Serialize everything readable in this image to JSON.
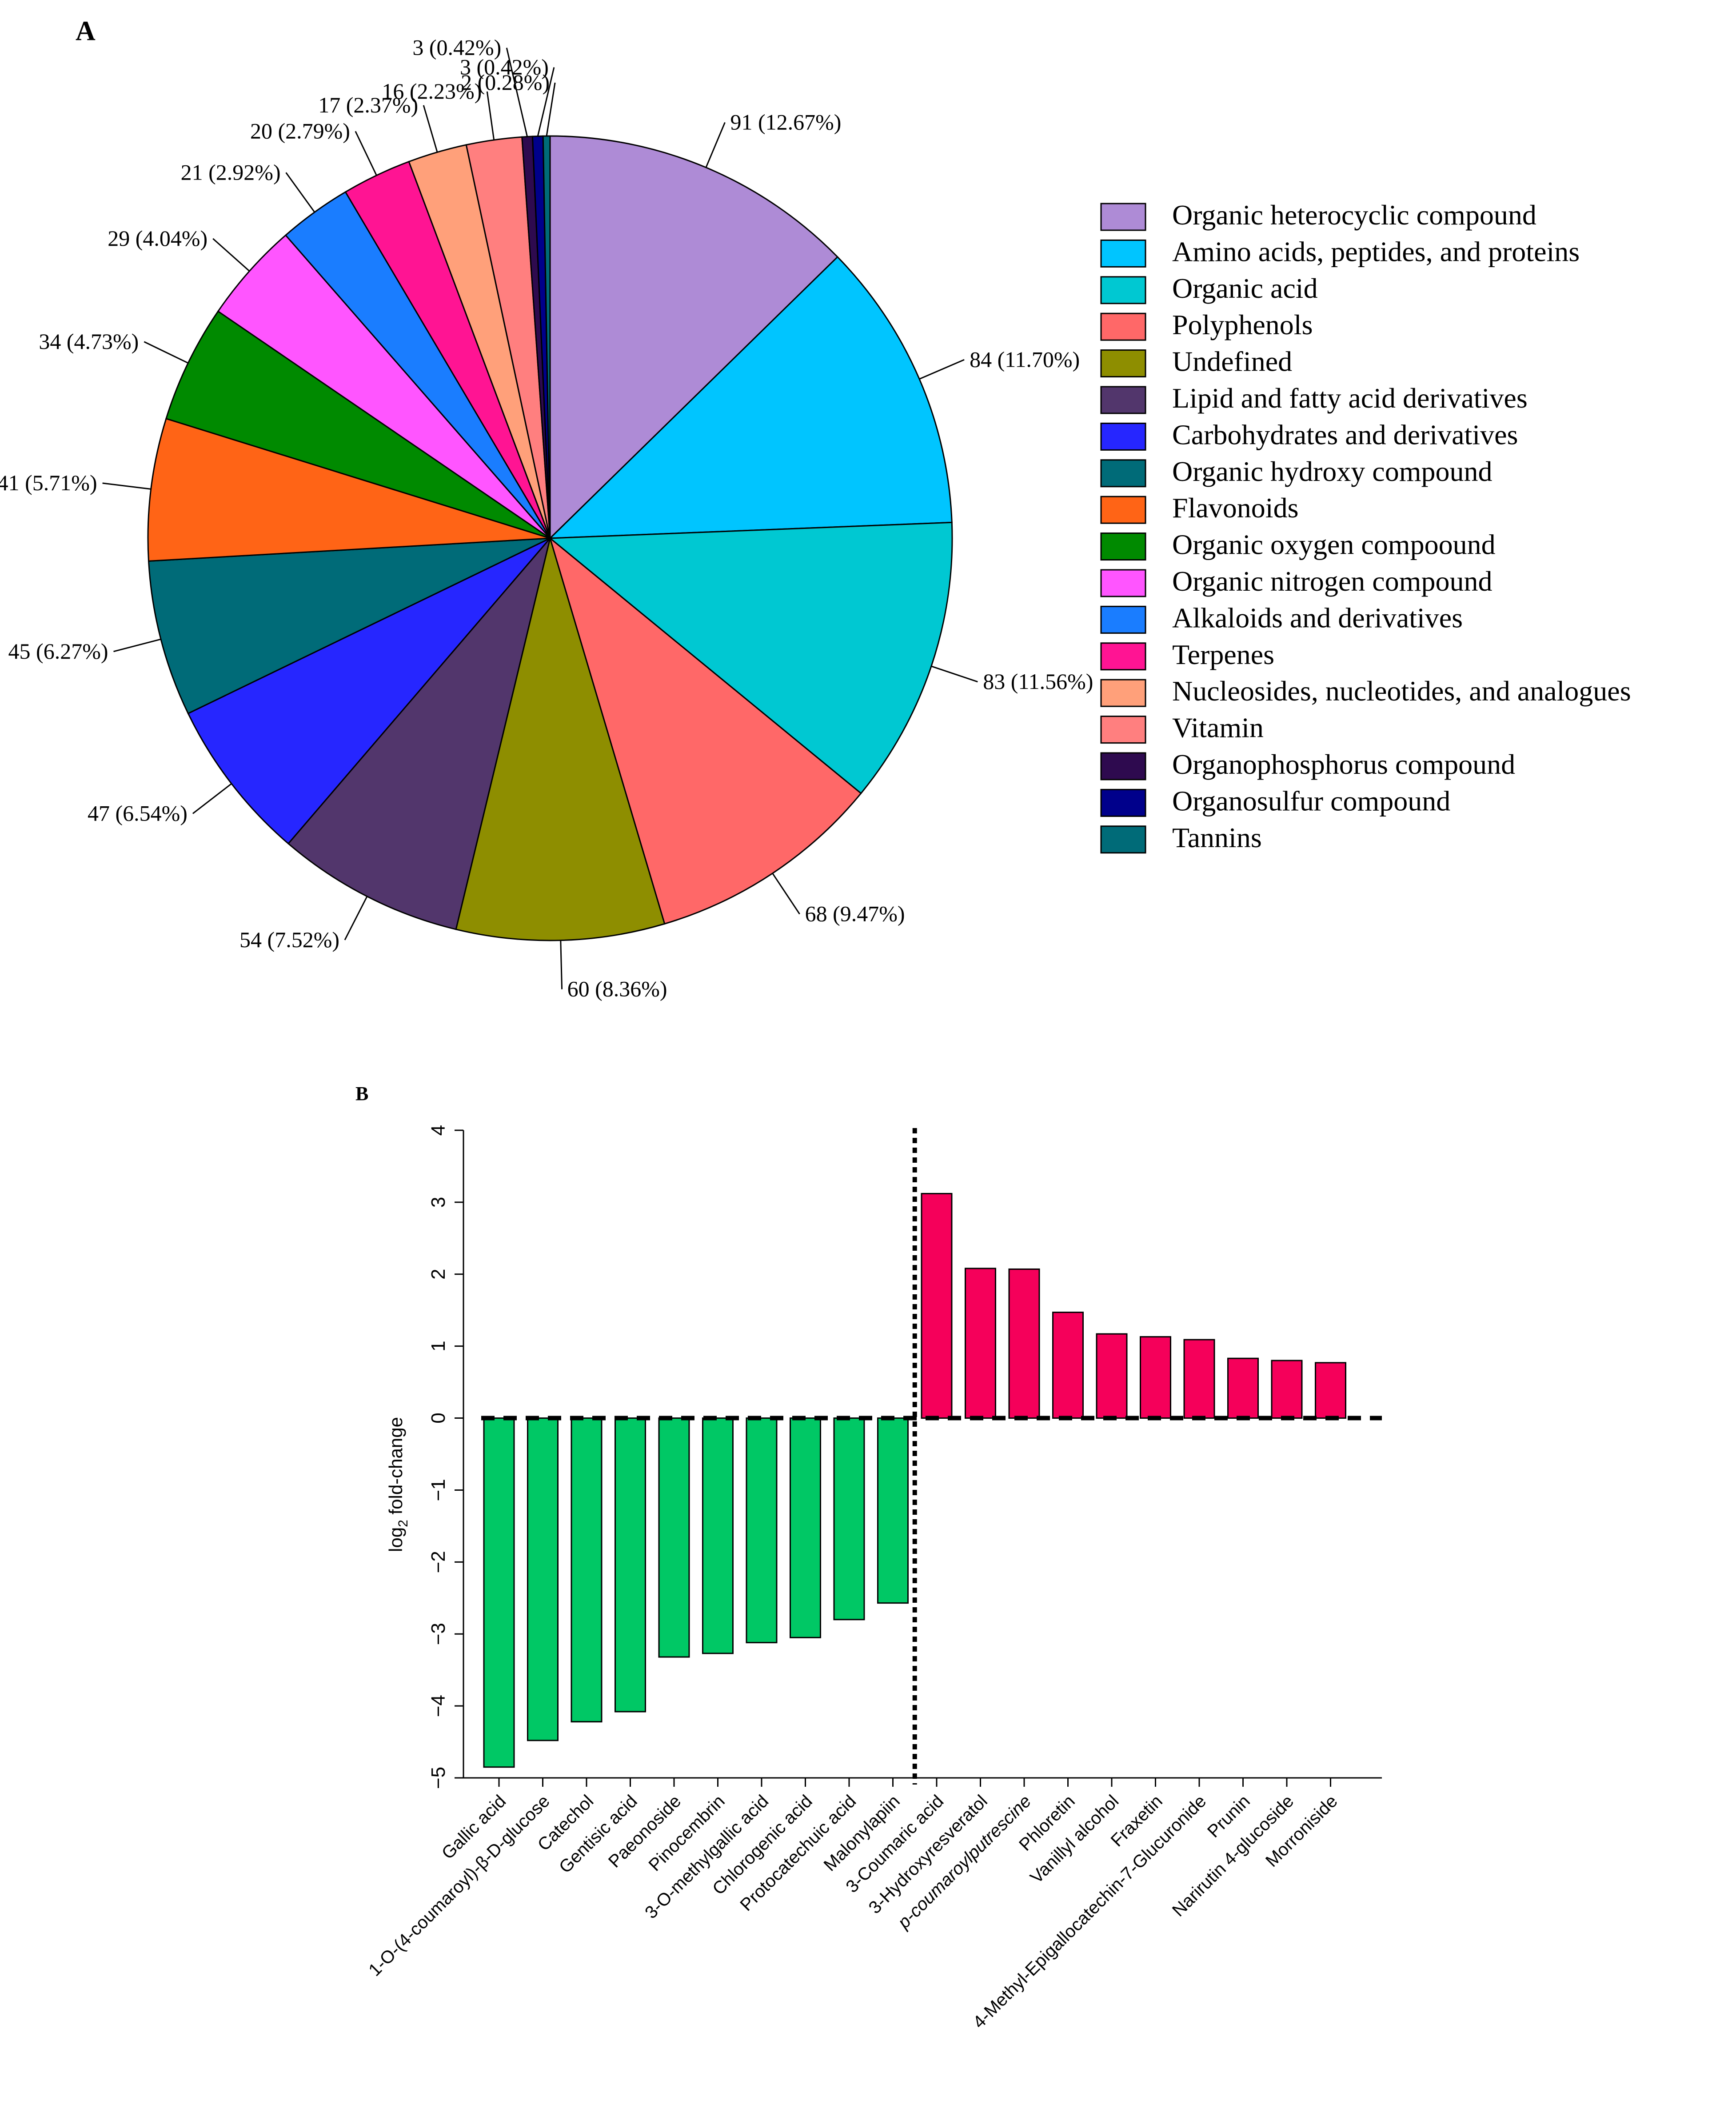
{
  "chart_data": [
    {
      "type": "pie",
      "panel_label": "A",
      "slices": [
        {
          "label": "Organic heterocyclic compound",
          "value": 91,
          "pct_label": "91 (12.67%)",
          "color": "#AE8BD6"
        },
        {
          "label": "Amino acids, peptides, and proteins",
          "value": 84,
          "pct_label": "84 (11.70%)",
          "color": "#00C5FF"
        },
        {
          "label": "Organic acid",
          "value": 83,
          "pct_label": "83 (11.56%)",
          "color": "#00C8D2"
        },
        {
          "label": "Polyphenols",
          "value": 68,
          "pct_label": "68 (9.47%)",
          "color": "#FF6868"
        },
        {
          "label": "Undefined",
          "value": 60,
          "pct_label": "60 (8.36%)",
          "color": "#8E8E00"
        },
        {
          "label": "Lipid and fatty acid derivatives",
          "value": 54,
          "pct_label": "54 (7.52%)",
          "color": "#52366C"
        },
        {
          "label": "Carbohydrates and derivatives",
          "value": 47,
          "pct_label": "47 (6.54%)",
          "color": "#2626FF"
        },
        {
          "label": "Organic hydroxy compound",
          "value": 45,
          "pct_label": "45 (6.27%)",
          "color": "#006B78"
        },
        {
          "label": "Flavonoids",
          "value": 41,
          "pct_label": "41 (5.71%)",
          "color": "#FF6416"
        },
        {
          "label": "Organic oxygen compoound",
          "value": 34,
          "pct_label": "34 (4.73%)",
          "color": "#008A00"
        },
        {
          "label": "Organic nitrogen compound",
          "value": 29,
          "pct_label": "29 (4.04%)",
          "color": "#FF55FF"
        },
        {
          "label": "Alkaloids and derivatives",
          "value": 21,
          "pct_label": "21 (2.92%)",
          "color": "#1A7DFF"
        },
        {
          "label": "Terpenes",
          "value": 20,
          "pct_label": "20 (2.79%)",
          "color": "#FF1493"
        },
        {
          "label": "Nucleosides, nucleotides, and analogues",
          "value": 17,
          "pct_label": "17 (2.37%)",
          "color": "#FFA07A"
        },
        {
          "label": "Vitamin",
          "value": 16,
          "pct_label": "16 (2.23%)",
          "color": "#FF7F7F"
        },
        {
          "label": "Organophosphorus compound",
          "value": 3,
          "pct_label": "3 (0.42%)",
          "color": "#2E0A4F"
        },
        {
          "label": "Organosulfur compound",
          "value": 3,
          "pct_label": "3 (0.42%)",
          "color": "#00008B"
        },
        {
          "label": "Tannins",
          "value": 2,
          "pct_label": "2 (0.28%)",
          "color": "#006B78"
        }
      ]
    },
    {
      "type": "bar",
      "panel_label": "B",
      "ylabel_main": "log",
      "ylabel_sub": "2",
      "ylabel_rest": " fold-change",
      "ylim": [
        -5,
        4
      ],
      "yticks": [
        "4",
        "3",
        "2",
        "1",
        "0",
        "−1",
        "−2",
        "−3",
        "−4",
        "−5"
      ],
      "ytick_values": [
        4,
        3,
        2,
        1,
        0,
        -1,
        -2,
        -3,
        -4,
        -5
      ],
      "neg_color": "#00C865",
      "pos_color": "#F5005A",
      "categories": [
        "Gallic acid",
        "1-O-(4-coumaroyl)-β-D-glucose",
        "Catechol",
        "Gentisic acid",
        "Paeonoside",
        "Pinocembrin",
        "3-O-methylgallic acid",
        "Chlorogenic acid",
        "Protocatechuic acid",
        "Malonylapiin",
        "3-Coumaric acid",
        "3-Hydroxyresveratol",
        "p-coumaroylputrescine",
        "Phloretin",
        "Vanillyl alcohol",
        "Fraxetin",
        "4-Methyl-Epigallocatechin-7-Glucuronide",
        "Prunin",
        "Narirutin 4-glucoside",
        "Morroniside"
      ],
      "values": [
        -4.85,
        -4.48,
        -4.22,
        -4.08,
        -3.32,
        -3.27,
        -3.12,
        -3.05,
        -2.8,
        -2.57,
        3.12,
        2.08,
        2.07,
        1.47,
        1.17,
        1.13,
        1.09,
        0.83,
        0.8,
        0.77
      ]
    }
  ]
}
